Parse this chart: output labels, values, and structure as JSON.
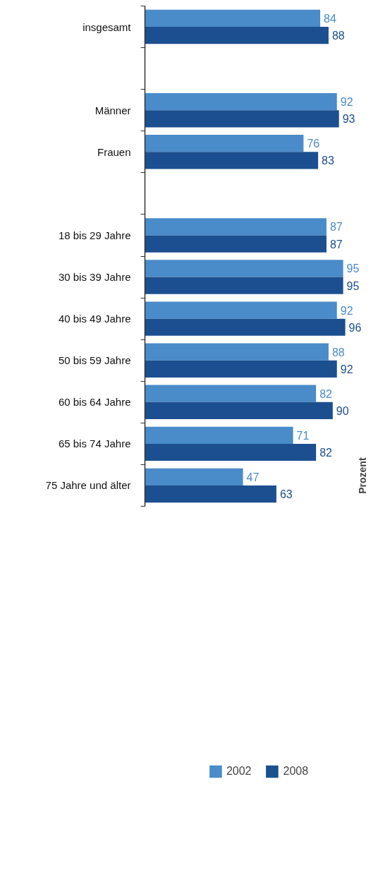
{
  "chart_data": {
    "type": "bar",
    "orientation": "horizontal",
    "categories": [
      "insgesamt",
      null,
      "Männer",
      "Frauen",
      null,
      "18 bis 29 Jahre",
      "30 bis 39 Jahre",
      "40 bis 49 Jahre",
      "50 bis 59 Jahre",
      "60 bis 64 Jahre",
      "65 bis 74 Jahre",
      "75 Jahre und älter"
    ],
    "series": [
      {
        "name": "2002",
        "color": "#4a8bc9",
        "values": [
          84,
          null,
          92,
          76,
          null,
          87,
          95,
          92,
          88,
          82,
          71,
          47
        ]
      },
      {
        "name": "2008",
        "color": "#1c4f8f",
        "values": [
          88,
          null,
          93,
          83,
          null,
          87,
          95,
          96,
          92,
          90,
          82,
          63
        ]
      }
    ],
    "data_labels": true,
    "legend": "bottom",
    "grid": false,
    "annotations": [
      "Prozent"
    ]
  }
}
